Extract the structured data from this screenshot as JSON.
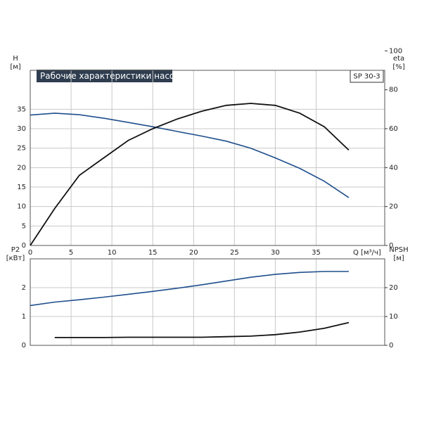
{
  "title": "Рабочие характеристики насоса",
  "model": "SP 30-3",
  "chart_data": [
    {
      "type": "line",
      "y_label": "H",
      "y_unit": "[м]",
      "y2_label": "eta",
      "y2_unit": "[%]",
      "x_label": "Q [м³/ч]",
      "xlim": [
        0,
        43.4
      ],
      "xticks": [
        0,
        5,
        10,
        15,
        20,
        25,
        30,
        35
      ],
      "ylim": [
        0,
        45
      ],
      "yticks": [
        0,
        5,
        10,
        15,
        20,
        25,
        30,
        35
      ],
      "y2lim": [
        0,
        90
      ],
      "y2ticks": [
        0,
        20,
        40,
        60,
        80,
        100
      ],
      "grid": true,
      "series": [
        {
          "color": "#1f4e8c",
          "x": [
            0,
            3,
            6,
            9,
            12,
            15,
            18,
            21,
            24,
            27,
            30,
            33,
            36,
            39
          ],
          "values": [
            33.5,
            34,
            33.6,
            32.7,
            31.6,
            30.5,
            29.3,
            28.1,
            26.8,
            25,
            22.5,
            19.8,
            16.5,
            12.3
          ]
        },
        {
          "color": "#111111",
          "axis": "y2",
          "x": [
            0,
            3,
            6,
            9,
            12,
            15,
            18,
            21,
            24,
            27,
            30,
            33,
            36,
            39
          ],
          "values": [
            0,
            19,
            36,
            45,
            54,
            60,
            65,
            69,
            72,
            73,
            72,
            68,
            61,
            49
          ]
        }
      ]
    },
    {
      "type": "line",
      "y_label": "P2",
      "y_unit": "[кВт]",
      "y2_label": "NPSH",
      "y2_unit": "[м]",
      "xlim": [
        0,
        43.4
      ],
      "xticks": [
        0,
        5,
        10,
        15,
        20,
        25,
        30,
        35
      ],
      "ylim": [
        0,
        3
      ],
      "yticks": [
        0,
        1,
        2
      ],
      "y2lim": [
        0,
        30
      ],
      "y2ticks": [
        0,
        10,
        20
      ],
      "grid": true,
      "series": [
        {
          "color": "#1f4e8c",
          "x": [
            0,
            3,
            6,
            9,
            12,
            15,
            18,
            21,
            24,
            27,
            30,
            33,
            36,
            39
          ],
          "values": [
            1.38,
            1.5,
            1.58,
            1.67,
            1.77,
            1.87,
            1.98,
            2.1,
            2.23,
            2.36,
            2.46,
            2.53,
            2.56,
            2.56
          ]
        },
        {
          "color": "#111111",
          "axis": "y2",
          "x": [
            3,
            6,
            9,
            12,
            15,
            18,
            21,
            24,
            27,
            30,
            33,
            36,
            39
          ],
          "values": [
            2.7,
            2.7,
            2.7,
            2.8,
            2.8,
            2.8,
            2.8,
            3.0,
            3.2,
            3.7,
            4.6,
            5.9,
            7.9
          ]
        }
      ]
    }
  ]
}
